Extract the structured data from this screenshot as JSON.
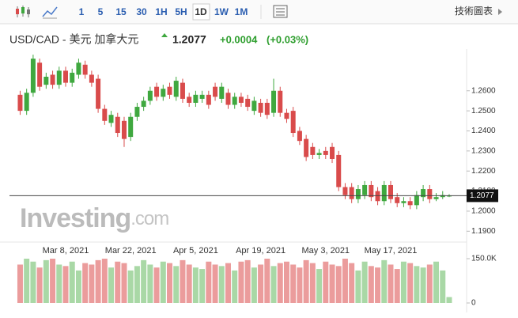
{
  "toolbar": {
    "intervals": [
      "1",
      "5",
      "15",
      "30",
      "1H",
      "5H",
      "1D",
      "1W",
      "1M"
    ],
    "selected": "1D",
    "chart_button": "技術圖表"
  },
  "header": {
    "symbol": "USD/CAD - 美元 加拿大元",
    "price": "1.2077",
    "change": "+0.0004",
    "change_pct": "(+0.03%)"
  },
  "watermark": {
    "brand": "Investing",
    "suffix": ".com"
  },
  "chart_data": {
    "type": "candlestick",
    "categories": [
      null,
      null,
      null,
      null,
      null,
      null,
      null,
      "Mar 8, 2021",
      null,
      null,
      null,
      null,
      null,
      null,
      null,
      null,
      null,
      "Mar 22, 2021",
      null,
      null,
      null,
      null,
      null,
      null,
      null,
      null,
      null,
      "Apr 5, 2021",
      null,
      null,
      null,
      null,
      null,
      null,
      null,
      null,
      null,
      "Apr 19, 2021",
      null,
      null,
      null,
      null,
      null,
      null,
      null,
      null,
      null,
      "May 3, 2021",
      null,
      null,
      null,
      null,
      null,
      null,
      null,
      null,
      null,
      "May 17, 2021",
      null,
      null,
      null,
      null,
      null,
      null,
      null,
      null,
      null
    ],
    "open": [
      1.258,
      1.25,
      1.259,
      1.274,
      1.263,
      1.268,
      1.263,
      1.27,
      1.264,
      1.268,
      1.273,
      1.268,
      1.266,
      1.251,
      1.244,
      1.247,
      1.245,
      1.237,
      1.247,
      1.252,
      1.255,
      1.262,
      1.257,
      1.262,
      1.257,
      1.264,
      1.257,
      1.254,
      1.256,
      1.258,
      1.262,
      1.256,
      1.259,
      1.253,
      1.257,
      1.256,
      1.25,
      1.254,
      1.254,
      1.249,
      1.26,
      1.249,
      1.25,
      1.24,
      1.236,
      1.232,
      1.228,
      1.23,
      1.232,
      1.228,
      1.212,
      1.212,
      1.206,
      1.208,
      1.213,
      1.21,
      1.205,
      1.213,
      1.207,
      1.204,
      1.205,
      1.203,
      1.207,
      1.211,
      1.206,
      1.207,
      1.2073
    ],
    "high": [
      1.26,
      1.261,
      1.278,
      1.276,
      1.269,
      1.27,
      1.272,
      1.272,
      1.271,
      1.276,
      1.275,
      1.27,
      1.268,
      1.253,
      1.25,
      1.249,
      1.247,
      1.249,
      1.254,
      1.257,
      1.262,
      1.264,
      1.263,
      1.264,
      1.267,
      1.266,
      1.259,
      1.26,
      1.26,
      1.26,
      1.264,
      1.264,
      1.261,
      1.259,
      1.259,
      1.258,
      1.257,
      1.256,
      1.256,
      1.266,
      1.262,
      1.251,
      1.252,
      1.242,
      1.238,
      1.234,
      1.231,
      1.232,
      1.234,
      1.23,
      1.214,
      1.214,
      1.213,
      1.215,
      1.215,
      1.212,
      1.215,
      1.215,
      1.209,
      1.207,
      1.207,
      1.21,
      1.213,
      1.213,
      1.209,
      1.21,
      1.2085
    ],
    "low": [
      1.248,
      1.248,
      1.257,
      1.26,
      1.261,
      1.261,
      1.261,
      1.262,
      1.262,
      1.266,
      1.266,
      1.262,
      1.249,
      1.243,
      1.242,
      1.237,
      1.232,
      1.235,
      1.245,
      1.25,
      1.253,
      1.255,
      1.255,
      1.256,
      1.255,
      1.254,
      1.252,
      1.252,
      1.254,
      1.251,
      1.255,
      1.254,
      1.251,
      1.251,
      1.252,
      1.25,
      1.248,
      1.247,
      1.246,
      1.247,
      1.247,
      1.244,
      1.237,
      1.233,
      1.225,
      1.226,
      1.226,
      1.226,
      1.224,
      1.21,
      1.206,
      1.204,
      1.204,
      1.206,
      1.205,
      1.203,
      1.203,
      1.204,
      1.202,
      1.202,
      1.201,
      1.201,
      1.205,
      1.204,
      1.205,
      1.206,
      1.207
    ],
    "close": [
      1.25,
      1.259,
      1.276,
      1.262,
      1.267,
      1.263,
      1.27,
      1.264,
      1.269,
      1.274,
      1.268,
      1.264,
      1.251,
      1.245,
      1.248,
      1.239,
      1.236,
      1.247,
      1.252,
      1.255,
      1.26,
      1.257,
      1.261,
      1.258,
      1.265,
      1.256,
      1.254,
      1.258,
      1.258,
      1.253,
      1.257,
      1.262,
      1.253,
      1.257,
      1.254,
      1.252,
      1.255,
      1.249,
      1.248,
      1.26,
      1.249,
      1.246,
      1.239,
      1.235,
      1.227,
      1.228,
      1.229,
      1.228,
      1.226,
      1.212,
      1.208,
      1.206,
      1.211,
      1.213,
      1.207,
      1.205,
      1.213,
      1.206,
      1.204,
      1.205,
      1.203,
      1.208,
      1.211,
      1.206,
      1.207,
      1.208,
      1.2077
    ],
    "up_color": "#3fa83f",
    "down_color": "#d94b4b",
    "ylim": [
      1.1846,
      1.2808
    ],
    "yticks": [
      {
        "value": 1.19,
        "label": "1.1900"
      },
      {
        "value": 1.2,
        "label": "1.2000"
      },
      {
        "value": 1.21,
        "label": "1.2100"
      },
      {
        "value": 1.22,
        "label": "1.2200"
      },
      {
        "value": 1.23,
        "label": "1.2300"
      },
      {
        "value": 1.24,
        "label": "1.2400"
      },
      {
        "value": 1.25,
        "label": "1.2500"
      },
      {
        "value": 1.26,
        "label": "1.2600"
      }
    ],
    "last_price": 1.2077,
    "volume": {
      "values": [
        130000,
        150000,
        140000,
        120000,
        145000,
        150000,
        130000,
        125000,
        140000,
        110000,
        135000,
        130000,
        145000,
        150000,
        120000,
        140000,
        135000,
        110000,
        125000,
        145000,
        130000,
        120000,
        140000,
        135000,
        125000,
        145000,
        130000,
        120000,
        115000,
        140000,
        130000,
        125000,
        135000,
        110000,
        140000,
        145000,
        120000,
        130000,
        150000,
        125000,
        135000,
        140000,
        130000,
        120000,
        145000,
        135000,
        115000,
        140000,
        130000,
        125000,
        150000,
        135000,
        110000,
        140000,
        125000,
        120000,
        145000,
        130000,
        115000,
        140000,
        135000,
        125000,
        120000,
        130000,
        140000,
        110000,
        20000
      ],
      "up_color": "#a9d8a6",
      "down_color": "#eb9c9c",
      "ylim": [
        0,
        160000
      ],
      "yticks": [
        {
          "value": 0,
          "label": "0"
        },
        {
          "value": 150000,
          "label": "150.0K"
        }
      ]
    }
  }
}
